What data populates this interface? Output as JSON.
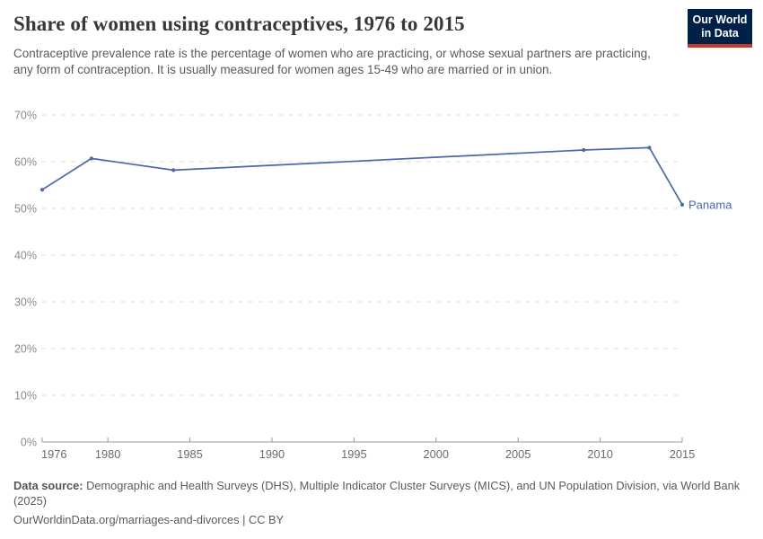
{
  "header": {
    "title": "Share of women using contraceptives, 1976 to 2015",
    "subtitle": "Contraceptive prevalence rate is the percentage of women who are practicing, or whose sexual partners are practicing, any form of contraception. It is usually measured for women ages 15-49 who are married or in union.",
    "logo": {
      "line1": "Our World",
      "line2": "in Data",
      "bg_color": "#002147",
      "accent_color": "#c5362c"
    }
  },
  "chart_data": {
    "type": "line",
    "title": "Share of women using contraceptives, 1976 to 2015",
    "xlabel": "",
    "ylabel": "",
    "xlim": [
      1976,
      2015
    ],
    "ylim": [
      0,
      70
    ],
    "grid": "horizontal-dashed",
    "legend_position": "end-of-line-label",
    "x_ticks": [
      1976,
      1980,
      1985,
      1990,
      1995,
      2000,
      2005,
      2010,
      2015
    ],
    "y_ticks": [
      0,
      10,
      20,
      30,
      40,
      50,
      60,
      70
    ],
    "y_tick_suffix": "%",
    "series": [
      {
        "name": "Panama",
        "color": "#4a69a8",
        "points": [
          {
            "x": 1976,
            "y": 54.0
          },
          {
            "x": 1979,
            "y": 60.7
          },
          {
            "x": 1984,
            "y": 58.2
          },
          {
            "x": 2009,
            "y": 62.5
          },
          {
            "x": 2013,
            "y": 63.0
          },
          {
            "x": 2015,
            "y": 50.8
          }
        ]
      }
    ],
    "colors": {
      "gridline": "#dcdcdc",
      "axis": "#9a9a9a",
      "y_tick_label": "#8a8a8a",
      "x_tick_label": "#6b6b6b"
    }
  },
  "footer": {
    "data_source_label": "Data source:",
    "data_source_text": " Demographic and Health Surveys (DHS), Multiple Indicator Cluster Surveys (MICS), and UN Population Division, via World Bank (2025)",
    "attribution": "OurWorldinData.org/marriages-and-divorces | CC BY"
  }
}
